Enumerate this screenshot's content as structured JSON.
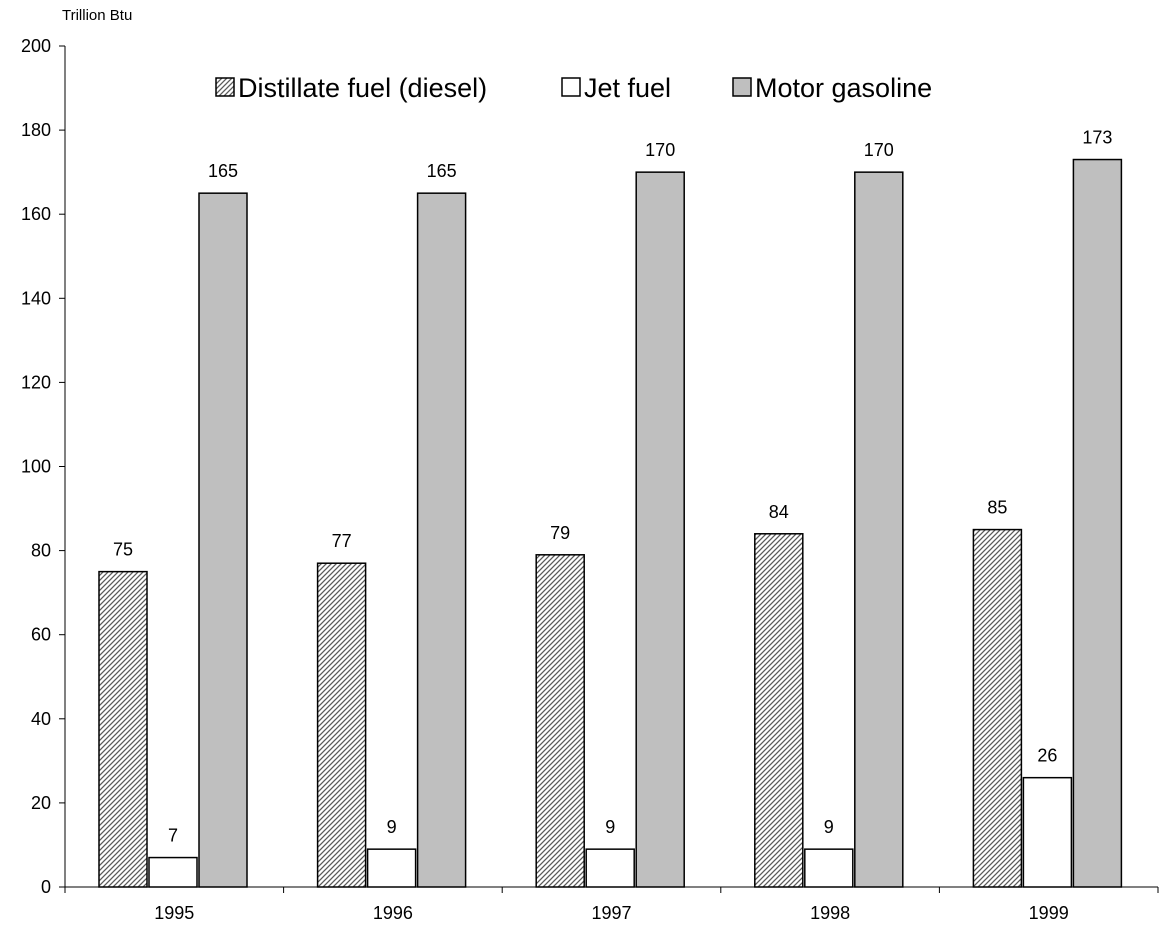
{
  "chart_data": {
    "type": "bar",
    "ylabel": "Trillion Btu",
    "ylim": [
      0,
      200
    ],
    "yticks": [
      0,
      20,
      40,
      60,
      80,
      100,
      120,
      140,
      160,
      180,
      200
    ],
    "categories": [
      "1995",
      "1996",
      "1997",
      "1998",
      "1999"
    ],
    "series": [
      {
        "name": "Distillate fuel (diesel)",
        "values": [
          75,
          77,
          79,
          84,
          85
        ],
        "fill": "hatch"
      },
      {
        "name": "Jet fuel",
        "values": [
          7,
          9,
          9,
          9,
          26
        ],
        "fill": "#ffffff"
      },
      {
        "name": "Motor gasoline",
        "values": [
          165,
          165,
          170,
          170,
          173
        ],
        "fill": "#bfbfbf"
      }
    ],
    "legend_position": "top",
    "grid": false
  }
}
